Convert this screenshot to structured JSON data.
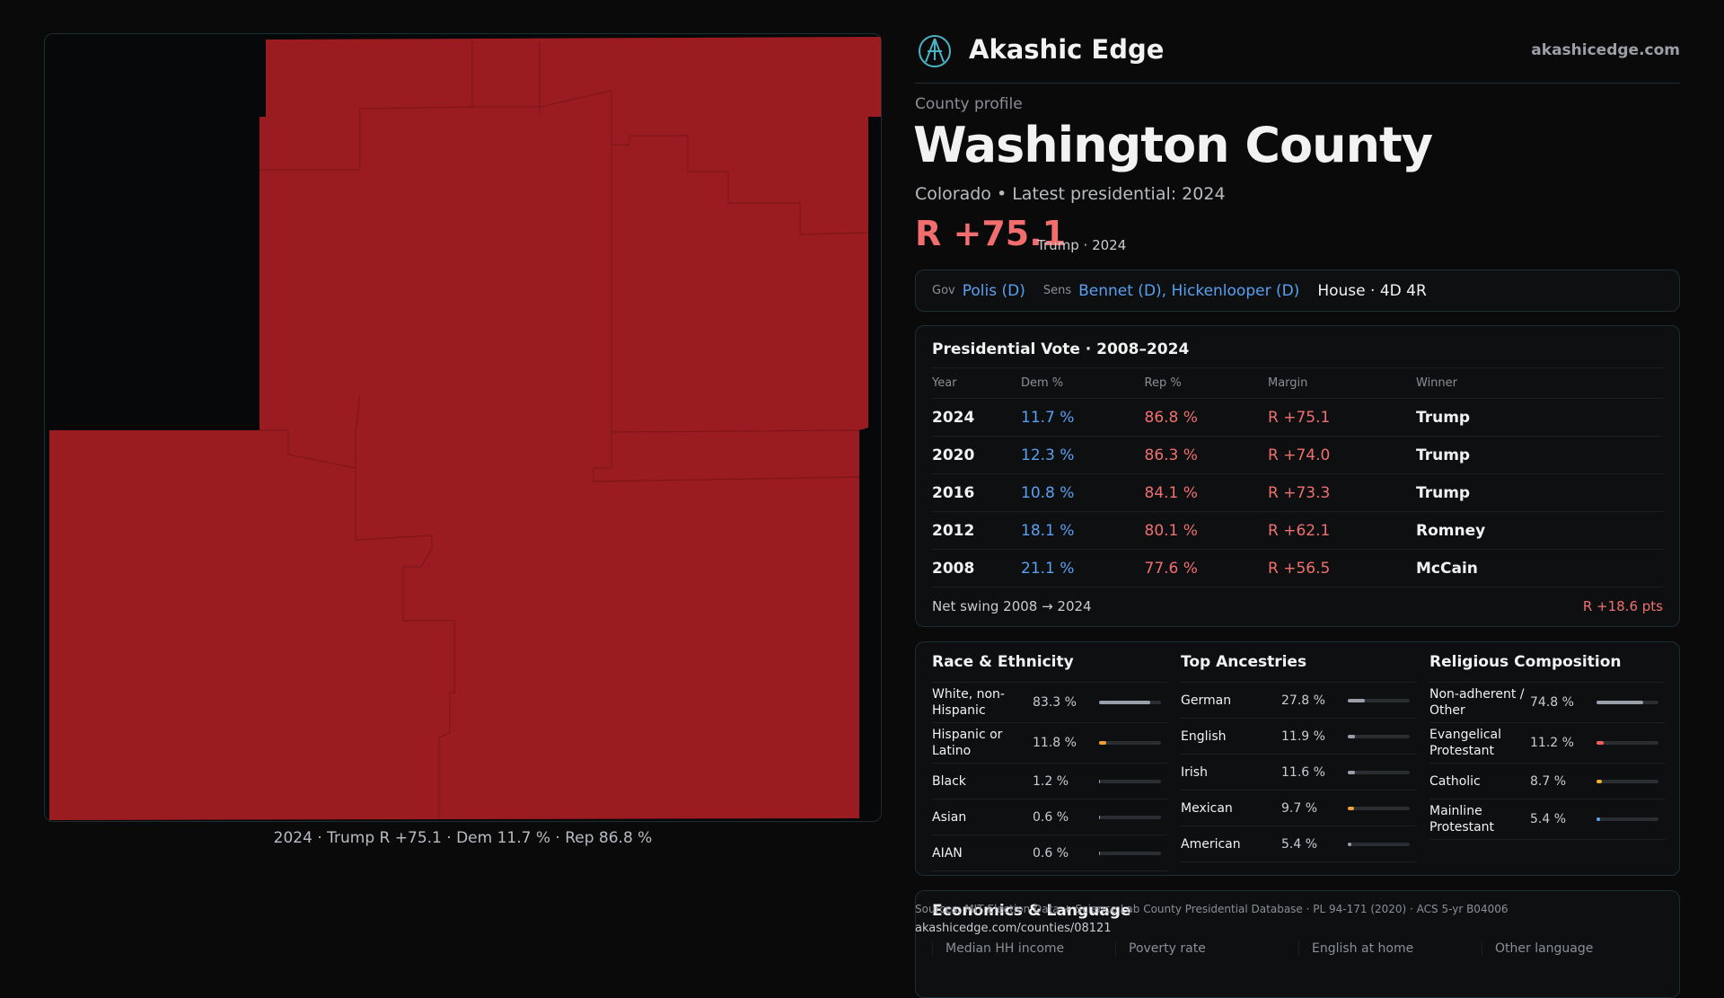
{
  "map": {
    "caption": "2024 · Trump R +75.1 · Dem 11.7 % · Rep 86.8 %"
  },
  "header": {
    "brand": "Akashic Edge",
    "site": "akashicedge.com"
  },
  "profile": {
    "kicker": "County profile",
    "title": "Washington County",
    "subtitle": "Colorado • Latest presidential: 2024",
    "margin": "R +75.1",
    "margin_note": "Trump · 2024"
  },
  "officials": {
    "gov_label": "Gov",
    "gov": "Polis (D)",
    "sens_label": "Sens",
    "sens": "Bennet (D), Hickenlooper (D)",
    "house": "House · 4D 4R"
  },
  "presidential": {
    "title": "Presidential Vote · 2008–2024",
    "columns": [
      "Year",
      "Dem %",
      "Rep %",
      "Margin",
      "Winner"
    ],
    "rows": [
      [
        "2024",
        "11.7 %",
        "86.8 %",
        "R +75.1",
        "Trump"
      ],
      [
        "2020",
        "12.3 %",
        "86.3 %",
        "R +74.0",
        "Trump"
      ],
      [
        "2016",
        "10.8 %",
        "84.1 %",
        "R +73.3",
        "Trump"
      ],
      [
        "2012",
        "18.1 %",
        "80.1 %",
        "R +62.1",
        "Romney"
      ],
      [
        "2008",
        "21.1 %",
        "77.6 %",
        "R +56.5",
        "McCain"
      ]
    ],
    "swing_label": "Net swing 2008 → 2024",
    "swing": "R +18.6 pts"
  },
  "demographics": [
    {
      "title": "Race & Ethnicity",
      "items": [
        {
          "name": "White, non-Hispanic",
          "value": 83.3,
          "label": "83.3 %",
          "color": "#9aa0aa"
        },
        {
          "name": "Hispanic or Latino",
          "value": 11.8,
          "label": "11.8 %",
          "color": "#f0a030"
        },
        {
          "name": "Black",
          "value": 1.2,
          "label": "1.2 %",
          "color": "#9aa0aa"
        },
        {
          "name": "Asian",
          "value": 0.6,
          "label": "0.6 %",
          "color": "#9aa0aa"
        },
        {
          "name": "AIAN",
          "value": 0.6,
          "label": "0.6 %",
          "color": "#9aa0aa"
        }
      ]
    },
    {
      "title": "Top Ancestries",
      "items": [
        {
          "name": "German",
          "value": 27.8,
          "label": "27.8 %",
          "color": "#9aa0aa"
        },
        {
          "name": "English",
          "value": 11.9,
          "label": "11.9 %",
          "color": "#9aa0aa"
        },
        {
          "name": "Irish",
          "value": 11.6,
          "label": "11.6 %",
          "color": "#9aa0aa"
        },
        {
          "name": "Mexican",
          "value": 9.7,
          "label": "9.7 %",
          "color": "#f0a030"
        },
        {
          "name": "American",
          "value": 5.4,
          "label": "5.4 %",
          "color": "#9aa0aa"
        }
      ]
    },
    {
      "title": "Religious Composition",
      "items": [
        {
          "name": "Non-adherent / Other",
          "value": 74.8,
          "label": "74.8 %",
          "color": "#9aa0aa"
        },
        {
          "name": "Evangelical Protestant",
          "value": 11.2,
          "label": "11.2 %",
          "color": "#f06060"
        },
        {
          "name": "Catholic",
          "value": 8.7,
          "label": "8.7 %",
          "color": "#f0b030"
        },
        {
          "name": "Mainline Protestant",
          "value": 5.4,
          "label": "5.4 %",
          "color": "#5aa0f0"
        }
      ]
    }
  ],
  "economics": {
    "title": "Economics & Language",
    "stats": [
      "Median HH income",
      "Poverty rate",
      "English at home",
      "Other language"
    ]
  },
  "sources": {
    "text": "Sources: MIT Election Data + Science Lab County Presidential Database · PL 94-171 (2020) · ACS 5-yr B04006",
    "url": "akashicedge.com/counties/08121"
  }
}
